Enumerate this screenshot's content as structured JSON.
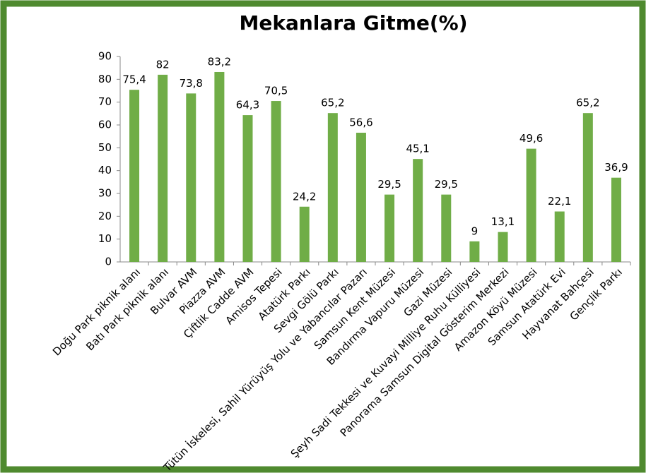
{
  "chart_data": {
    "type": "bar",
    "title": "Mekanlara Gitme(%)",
    "categories": [
      "Doğu Park piknik alanı",
      "Batı Park piknik alanı",
      "Bulvar AVM",
      "Piazza AVM",
      "Çiftlik Cadde AVM",
      "Amisos Tepesi",
      "Atatürk Parkı",
      "Sevgi Gölü Parkı",
      "Tütün İskelesi, Sahil Yürüyüş Yolu ve Yabancılar Pazarı",
      "Samsun Kent Müzesi",
      "Bandırma Vapuru Müzesi",
      "Gazi Müzesi",
      "Şeyh Sadi Tekkesi ve Kuvayi Milliye Ruhu Külliyesi",
      "Panorama Samsun Digital Gösterim Merkezi",
      "Amazon Köyü Müzesi",
      "Samsun Atatürk Evi",
      "Hayvanat Bahçesi",
      "Gençlik Parkı"
    ],
    "values": [
      75.4,
      82,
      73.8,
      83.2,
      64.3,
      70.5,
      24.2,
      65.2,
      56.6,
      29.5,
      45.1,
      29.5,
      9,
      13.1,
      49.6,
      22.1,
      65.2,
      36.9
    ],
    "value_labels": [
      "75,4",
      "82",
      "73,8",
      "83,2",
      "64,3",
      "70,5",
      "24,2",
      "65,2",
      "56,6",
      "29,5",
      "45,1",
      "29,5",
      "9",
      "13,1",
      "49,6",
      "22,1",
      "65,2",
      "36,9"
    ],
    "color": "#70ad47",
    "ylim": [
      0,
      90
    ],
    "yticks": [
      0,
      10,
      20,
      30,
      40,
      50,
      60,
      70,
      80,
      90
    ],
    "grid": false
  }
}
